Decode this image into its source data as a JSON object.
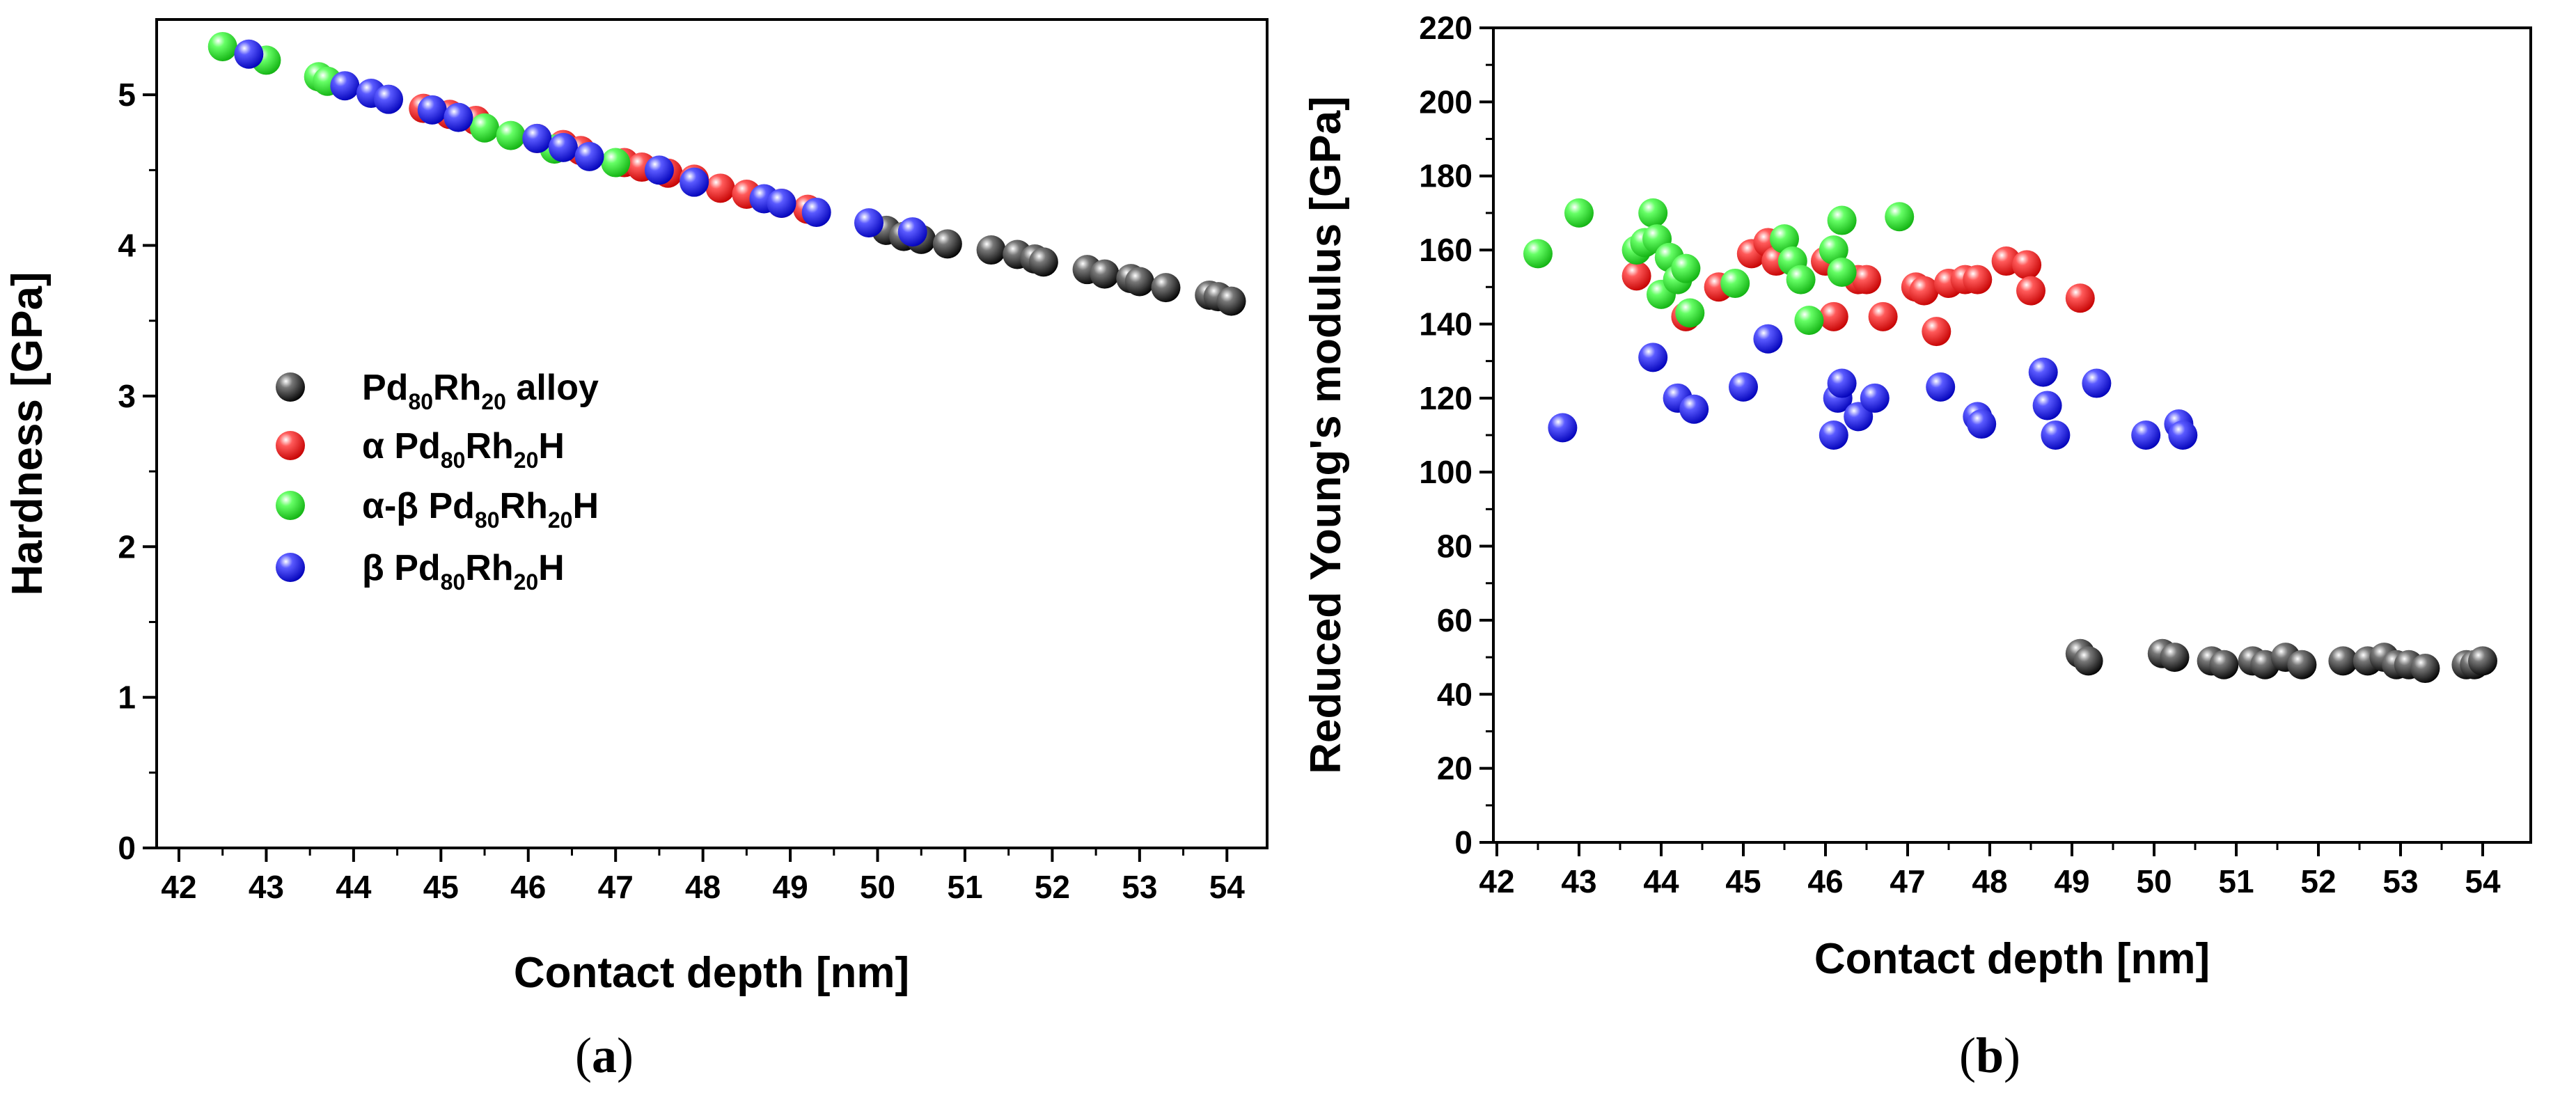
{
  "colors": {
    "alloy": "#0a0a0a",
    "alpha": "#e81010",
    "alpha_beta": "#22dd22",
    "beta": "#1515e6"
  },
  "chart_data": [
    {
      "type": "scatter",
      "panel": "a",
      "caption": {
        "open": "(",
        "letter": "a",
        "close": ")"
      },
      "xlabel": "Contact depth [nm]",
      "ylabel": "Hardness [GPa]",
      "xlim": [
        42,
        54.5
      ],
      "ylim": [
        0,
        5.5
      ],
      "xticks": [
        42,
        43,
        44,
        45,
        46,
        47,
        48,
        49,
        50,
        51,
        52,
        53,
        54
      ],
      "yticks": [
        0,
        1,
        2,
        3,
        4,
        5
      ],
      "legend": {
        "position": "center-left",
        "entries": [
          {
            "series": "alloy",
            "prefix": "",
            "parts": [
              [
                "Pd",
                "80"
              ],
              [
                "Rh",
                "20"
              ]
            ],
            "suffix": " alloy"
          },
          {
            "series": "alpha",
            "prefix": "α ",
            "parts": [
              [
                "Pd",
                "80"
              ],
              [
                "Rh",
                "20"
              ]
            ],
            "suffix": "H"
          },
          {
            "series": "alpha_beta",
            "prefix": "α-β ",
            "parts": [
              [
                "Pd",
                "80"
              ],
              [
                "Rh",
                "20"
              ]
            ],
            "suffix": "H"
          },
          {
            "series": "beta",
            "prefix": "β ",
            "parts": [
              [
                "Pd",
                "80"
              ],
              [
                "Rh",
                "20"
              ]
            ],
            "suffix": "H"
          }
        ]
      },
      "series": [
        {
          "key": "alloy",
          "name": "Pd80Rh20 alloy",
          "x": [
            50.1,
            50.3,
            50.5,
            50.8,
            51.3,
            51.6,
            51.8,
            51.9,
            52.4,
            52.6,
            52.9,
            53.0,
            53.3,
            53.8,
            53.9,
            54.05
          ],
          "y": [
            4.1,
            4.06,
            4.04,
            4.01,
            3.97,
            3.94,
            3.91,
            3.89,
            3.84,
            3.81,
            3.78,
            3.76,
            3.72,
            3.67,
            3.66,
            3.63
          ]
        },
        {
          "key": "alpha",
          "name": "α Pd80Rh20H",
          "x": [
            44.8,
            45.1,
            45.4,
            46.1,
            46.4,
            46.6,
            47.1,
            47.3,
            47.6,
            47.9,
            48.2,
            48.5,
            48.9,
            49.2
          ],
          "y": [
            4.91,
            4.87,
            4.83,
            4.71,
            4.67,
            4.63,
            4.55,
            4.52,
            4.48,
            4.44,
            4.38,
            4.34,
            4.28,
            4.24
          ]
        },
        {
          "key": "alpha_beta",
          "name": "α-β Pd80Rh20H",
          "x": [
            42.5,
            43.0,
            43.6,
            43.7,
            45.5,
            45.8,
            46.3,
            47.0
          ],
          "y": [
            5.32,
            5.23,
            5.12,
            5.09,
            4.78,
            4.73,
            4.64,
            4.55
          ]
        },
        {
          "key": "beta",
          "name": "β Pd80Rh20H",
          "x": [
            42.8,
            43.9,
            44.2,
            44.4,
            44.9,
            45.2,
            46.1,
            46.4,
            46.7,
            47.5,
            47.9,
            48.7,
            48.9,
            49.3,
            49.9,
            50.4
          ],
          "y": [
            5.27,
            5.06,
            5.01,
            4.97,
            4.9,
            4.85,
            4.71,
            4.65,
            4.59,
            4.5,
            4.42,
            4.31,
            4.28,
            4.22,
            4.15,
            4.09
          ]
        }
      ]
    },
    {
      "type": "scatter",
      "panel": "b",
      "caption": {
        "open": "(",
        "letter": "b",
        "close": ")"
      },
      "xlabel": "Contact depth [nm]",
      "ylabel": "Reduced Young's modulus [GPa]",
      "xlim": [
        42,
        54.5
      ],
      "ylim": [
        0,
        220
      ],
      "xticks": [
        42,
        43,
        44,
        45,
        46,
        47,
        48,
        49,
        50,
        51,
        52,
        53,
        54
      ],
      "yticks": [
        0,
        20,
        40,
        60,
        80,
        100,
        120,
        140,
        160,
        180,
        200,
        220
      ],
      "series": [
        {
          "key": "alloy",
          "name": "Pd80Rh20 alloy",
          "x": [
            49.1,
            49.2,
            50.1,
            50.25,
            50.7,
            50.85,
            51.2,
            51.35,
            51.6,
            51.8,
            52.3,
            52.6,
            52.8,
            52.95,
            53.1,
            53.3,
            53.8,
            53.9,
            54.0
          ],
          "y": [
            51,
            49,
            51,
            50,
            49,
            48,
            49,
            48,
            50,
            48,
            49,
            49,
            50,
            48,
            48,
            47,
            48,
            48,
            49
          ]
        },
        {
          "key": "alpha",
          "name": "α Pd80Rh20H",
          "x": [
            43.7,
            44.3,
            44.7,
            45.1,
            45.3,
            45.4,
            46.0,
            46.1,
            46.4,
            46.5,
            46.7,
            47.1,
            47.2,
            47.35,
            47.5,
            47.7,
            47.85,
            48.2,
            48.45,
            48.5,
            49.1
          ],
          "y": [
            153,
            142,
            150,
            159,
            162,
            157,
            157,
            142,
            152,
            152,
            142,
            150,
            149,
            138,
            151,
            152,
            152,
            157,
            156,
            149,
            147
          ]
        },
        {
          "key": "alpha_beta",
          "name": "α-β Pd80Rh20H",
          "x": [
            42.5,
            43.0,
            43.7,
            43.8,
            43.9,
            43.95,
            44.0,
            44.1,
            44.2,
            44.3,
            44.35,
            44.9,
            45.5,
            45.6,
            45.7,
            45.8,
            46.1,
            46.2,
            46.2,
            46.9
          ],
          "y": [
            159,
            170,
            160,
            162,
            170,
            163,
            148,
            158,
            152,
            155,
            143,
            151,
            163,
            157,
            152,
            141,
            160,
            168,
            154,
            169
          ]
        },
        {
          "key": "beta",
          "name": "β Pd80Rh20H",
          "x": [
            42.8,
            43.9,
            44.2,
            44.4,
            45.0,
            45.3,
            46.1,
            46.15,
            46.2,
            46.4,
            46.6,
            47.4,
            47.85,
            47.9,
            48.65,
            48.7,
            48.8,
            49.3,
            49.9,
            50.3,
            50.35
          ],
          "y": [
            112,
            131,
            120,
            117,
            123,
            136,
            110,
            120,
            124,
            115,
            120,
            123,
            115,
            113,
            127,
            118,
            110,
            124,
            110,
            113,
            110
          ]
        }
      ]
    }
  ]
}
